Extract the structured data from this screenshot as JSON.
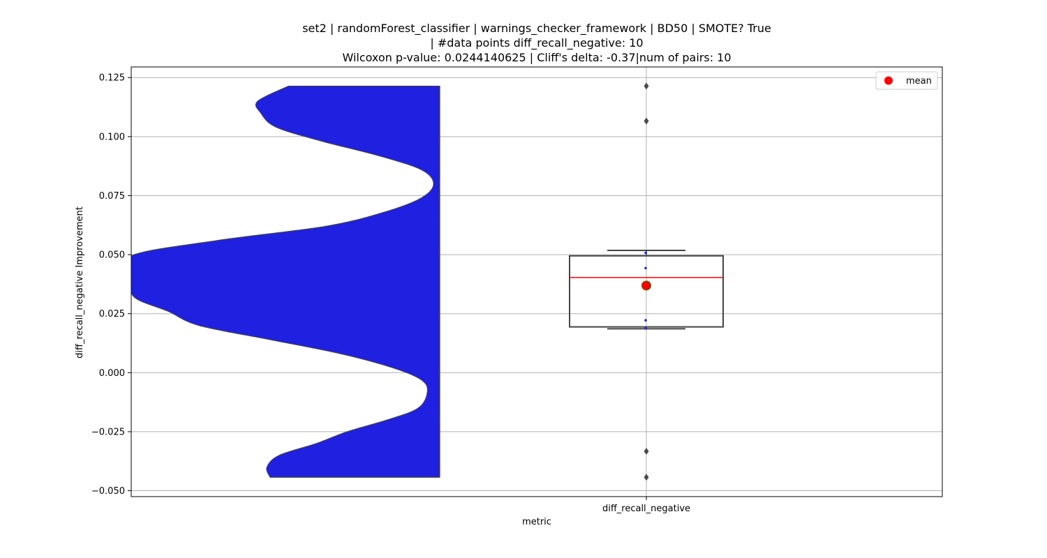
{
  "chart_data": {
    "type": "violin+box",
    "title_lines": [
      "set2 | randomForest_classifier | warnings_checker_framework | BD50 | SMOTE? True",
      "| #data points diff_recall_negative: 10",
      "Wilcoxon p-value: 0.0244140625 | Cliff's delta: -0.37|num of pairs: 10"
    ],
    "xlabel": "metric",
    "ylabel": "diff_recall_negative Improvement",
    "categories": [
      "diff_recall_negative"
    ],
    "ylim": [
      -0.0525,
      0.1295
    ],
    "yticks": [
      -0.05,
      -0.025,
      0.0,
      0.025,
      0.05,
      0.075,
      0.1,
      0.125
    ],
    "ytick_labels": [
      "−0.050",
      "−0.025",
      "0.000",
      "0.025",
      "0.050",
      "0.075",
      "0.100",
      "0.125"
    ],
    "grid": true,
    "violin": {
      "color": "#2020e0",
      "edge_color": "#444444",
      "side": "left",
      "cut_range": [
        -0.0443,
        0.1214
      ],
      "density_profile": [
        {
          "y": -0.0443,
          "w": 0.55
        },
        {
          "y": -0.04,
          "w": 0.56
        },
        {
          "y": -0.035,
          "w": 0.52
        },
        {
          "y": -0.03,
          "w": 0.4
        },
        {
          "y": -0.025,
          "w": 0.3
        },
        {
          "y": -0.02,
          "w": 0.17
        },
        {
          "y": -0.015,
          "w": 0.07
        },
        {
          "y": -0.008,
          "w": 0.04
        },
        {
          "y": -0.003,
          "w": 0.06
        },
        {
          "y": 0.002,
          "w": 0.15
        },
        {
          "y": 0.008,
          "w": 0.32
        },
        {
          "y": 0.014,
          "w": 0.55
        },
        {
          "y": 0.02,
          "w": 0.78
        },
        {
          "y": 0.026,
          "w": 0.88
        },
        {
          "y": 0.032,
          "w": 0.99
        },
        {
          "y": 0.04,
          "w": 1.0
        },
        {
          "y": 0.0495,
          "w": 1.0
        },
        {
          "y": 0.056,
          "w": 0.72
        },
        {
          "y": 0.062,
          "w": 0.37
        },
        {
          "y": 0.068,
          "w": 0.18
        },
        {
          "y": 0.074,
          "w": 0.06
        },
        {
          "y": 0.08,
          "w": 0.02
        },
        {
          "y": 0.086,
          "w": 0.06
        },
        {
          "y": 0.092,
          "w": 0.2
        },
        {
          "y": 0.098,
          "w": 0.38
        },
        {
          "y": 0.104,
          "w": 0.53
        },
        {
          "y": 0.11,
          "w": 0.58
        },
        {
          "y": 0.115,
          "w": 0.59
        },
        {
          "y": 0.1214,
          "w": 0.49
        }
      ]
    },
    "box": {
      "q1": 0.0194,
      "median": 0.0403,
      "q3": 0.0495,
      "whisker_low": 0.0186,
      "whisker_high": 0.0518,
      "median_color": "#ff0000",
      "edge_color": "#444444",
      "outliers": [
        0.1214,
        0.1066,
        -0.0333,
        -0.0443
      ],
      "mean": 0.0369,
      "inner_points": [
        0.0508,
        0.0443,
        0.0222,
        0.0188
      ]
    },
    "legend": {
      "placement": "upper-right",
      "items": [
        {
          "label": "mean",
          "color": "#ff0000"
        }
      ]
    }
  }
}
